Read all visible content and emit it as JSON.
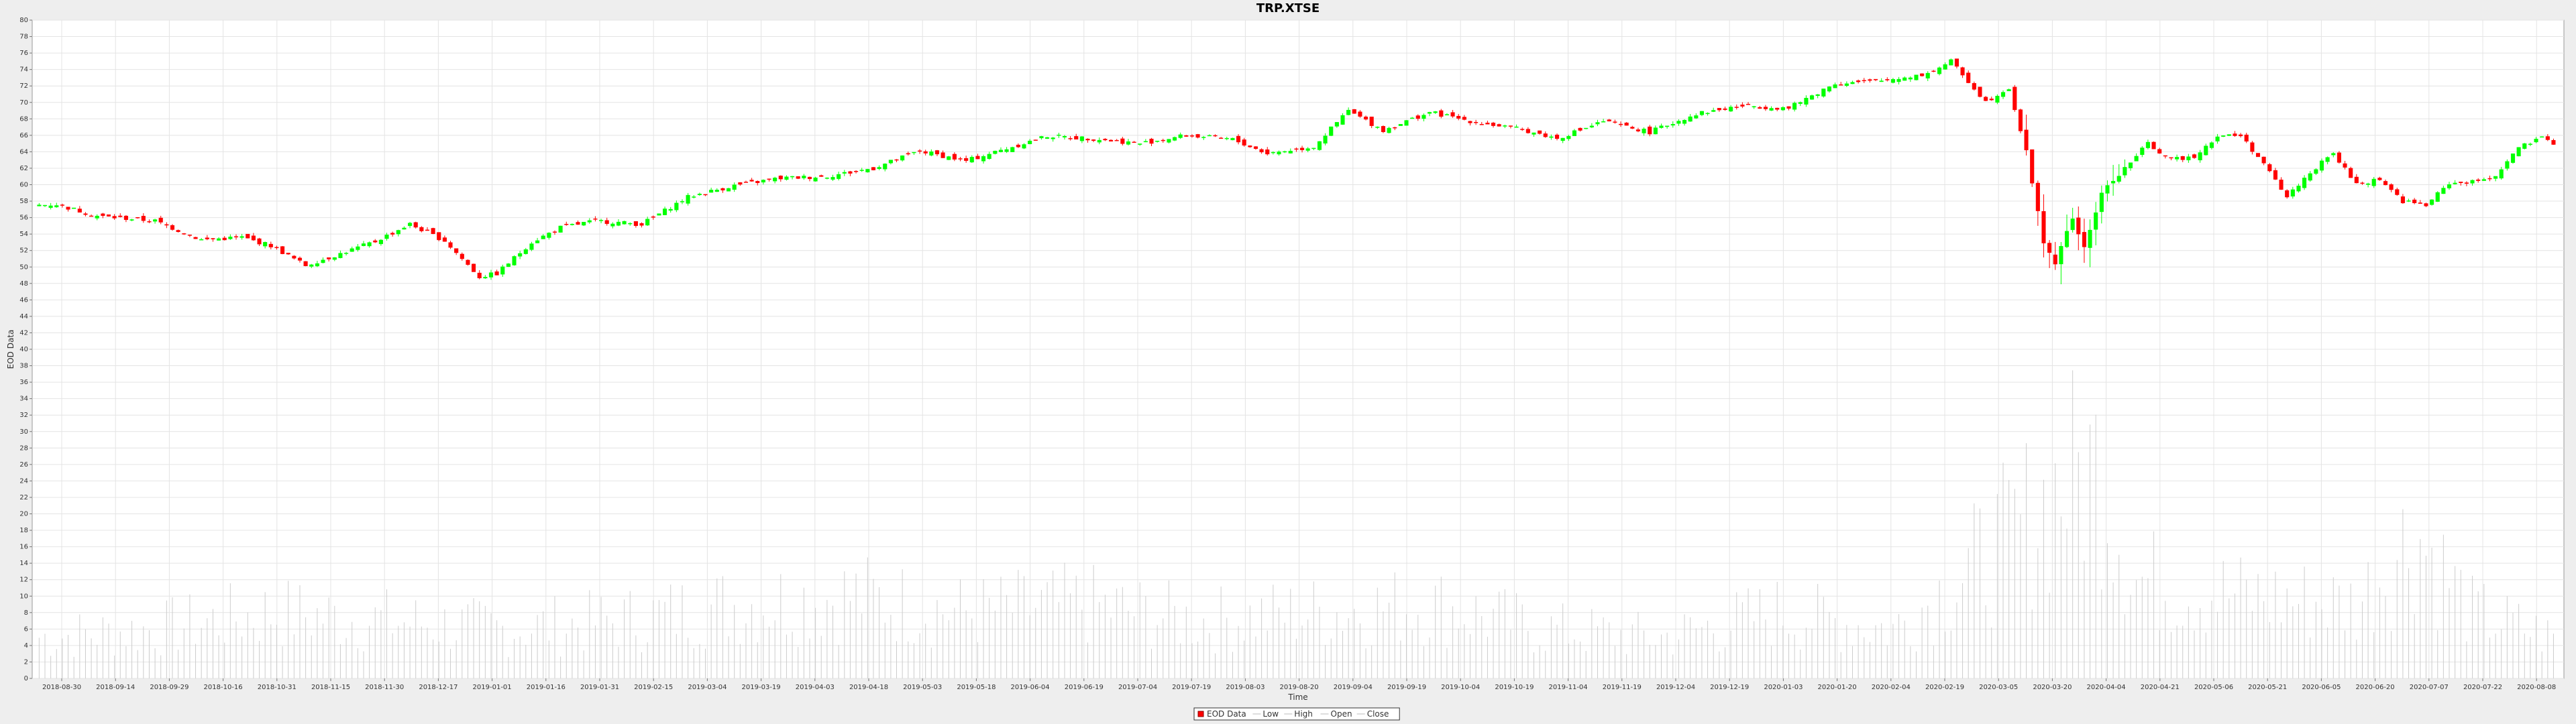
{
  "chart_data": {
    "type": "candlestick",
    "title": "TRP.XTSE",
    "xlabel": "Time",
    "ylabel": "EOD Data",
    "ylim": [
      0,
      80
    ],
    "y_ticks": [
      0,
      2,
      4,
      6,
      8,
      10,
      12,
      14,
      16,
      18,
      20,
      22,
      24,
      26,
      28,
      30,
      32,
      34,
      36,
      38,
      40,
      42,
      44,
      46,
      48,
      50,
      52,
      54,
      56,
      58,
      60,
      62,
      64,
      66,
      68,
      70,
      72,
      74,
      76,
      78,
      80
    ],
    "x_ticks": [
      "2018-08-30",
      "2018-09-14",
      "2018-09-29",
      "2018-10-16",
      "2018-10-31",
      "2018-11-15",
      "2018-11-30",
      "2018-12-17",
      "2019-01-01",
      "2019-01-16",
      "2019-01-31",
      "2019-02-15",
      "2019-03-04",
      "2019-03-19",
      "2019-04-03",
      "2019-04-18",
      "2019-05-03",
      "2019-05-18",
      "2019-06-04",
      "2019-06-19",
      "2019-07-04",
      "2019-07-19",
      "2019-08-03",
      "2019-08-20",
      "2019-09-04",
      "2019-09-19",
      "2019-10-04",
      "2019-10-19",
      "2019-11-04",
      "2019-11-19",
      "2019-12-04",
      "2019-12-19",
      "2020-01-03",
      "2020-01-20",
      "2020-02-04",
      "2020-02-19",
      "2020-03-05",
      "2020-03-20",
      "2020-04-04",
      "2020-04-21",
      "2020-05-06",
      "2020-05-21",
      "2020-06-05",
      "2020-06-20",
      "2020-07-07",
      "2020-07-22",
      "2020-08-08"
    ],
    "close_anchors": [
      [
        0,
        57.5
      ],
      [
        3,
        57.6
      ],
      [
        10,
        56.2
      ],
      [
        20,
        55.6
      ],
      [
        28,
        53.3
      ],
      [
        35,
        53.6
      ],
      [
        40,
        52.6
      ],
      [
        46,
        50.2
      ],
      [
        52,
        51.6
      ],
      [
        58,
        53.1
      ],
      [
        64,
        55.2
      ],
      [
        70,
        53.2
      ],
      [
        76,
        48.8
      ],
      [
        79,
        49.2
      ],
      [
        85,
        53.0
      ],
      [
        90,
        54.8
      ],
      [
        96,
        55.6
      ],
      [
        104,
        55.2
      ],
      [
        112,
        58.5
      ],
      [
        120,
        59.9
      ],
      [
        128,
        60.8
      ],
      [
        136,
        61.0
      ],
      [
        144,
        62.0
      ],
      [
        152,
        64.1
      ],
      [
        160,
        62.9
      ],
      [
        168,
        64.6
      ],
      [
        174,
        65.9
      ],
      [
        182,
        65.6
      ],
      [
        190,
        65.0
      ],
      [
        198,
        66.0
      ],
      [
        206,
        65.5
      ],
      [
        212,
        63.8
      ],
      [
        220,
        64.6
      ],
      [
        226,
        69.0
      ],
      [
        232,
        66.6
      ],
      [
        240,
        68.8
      ],
      [
        248,
        67.6
      ],
      [
        256,
        66.7
      ],
      [
        262,
        65.6
      ],
      [
        270,
        67.7
      ],
      [
        278,
        66.4
      ],
      [
        286,
        68.6
      ],
      [
        294,
        69.6
      ],
      [
        302,
        69.3
      ],
      [
        310,
        72.3
      ],
      [
        318,
        72.6
      ],
      [
        326,
        73.5
      ],
      [
        330,
        75.0
      ],
      [
        336,
        70.1
      ],
      [
        340,
        71.8
      ],
      [
        343,
        64.0
      ],
      [
        346,
        53.0
      ],
      [
        348,
        50.5
      ],
      [
        351,
        56.0
      ],
      [
        353,
        52.2
      ],
      [
        356,
        59.0
      ],
      [
        360,
        62.0
      ],
      [
        364,
        65.0
      ],
      [
        368,
        63.0
      ],
      [
        372,
        63.5
      ],
      [
        376,
        65.9
      ],
      [
        380,
        66.0
      ],
      [
        384,
        62.5
      ],
      [
        388,
        58.5
      ],
      [
        392,
        61.5
      ],
      [
        396,
        63.8
      ],
      [
        400,
        60.0
      ],
      [
        404,
        60.7
      ],
      [
        408,
        58.0
      ],
      [
        412,
        57.5
      ],
      [
        416,
        60.2
      ],
      [
        420,
        60.3
      ],
      [
        424,
        61.1
      ],
      [
        428,
        64.5
      ],
      [
        432,
        65.6
      ],
      [
        434,
        65.1
      ]
    ],
    "volume_anchors": [
      [
        0,
        5
      ],
      [
        20,
        6
      ],
      [
        40,
        8
      ],
      [
        60,
        7
      ],
      [
        80,
        6
      ],
      [
        100,
        7
      ],
      [
        120,
        9
      ],
      [
        140,
        10
      ],
      [
        160,
        8
      ],
      [
        180,
        9
      ],
      [
        200,
        7
      ],
      [
        220,
        8
      ],
      [
        240,
        9
      ],
      [
        260,
        6
      ],
      [
        280,
        5
      ],
      [
        300,
        8
      ],
      [
        320,
        6
      ],
      [
        340,
        17
      ],
      [
        350,
        24
      ],
      [
        356,
        26
      ],
      [
        362,
        12
      ],
      [
        380,
        10
      ],
      [
        400,
        9
      ],
      [
        410,
        18
      ],
      [
        420,
        8
      ],
      [
        434,
        5
      ]
    ],
    "legend": [
      "EOD Data",
      "Low",
      "High",
      "Open",
      "Close"
    ],
    "colors": {
      "up": "#00ff00",
      "down": "#ff0000",
      "volume": "#cccccc"
    }
  }
}
